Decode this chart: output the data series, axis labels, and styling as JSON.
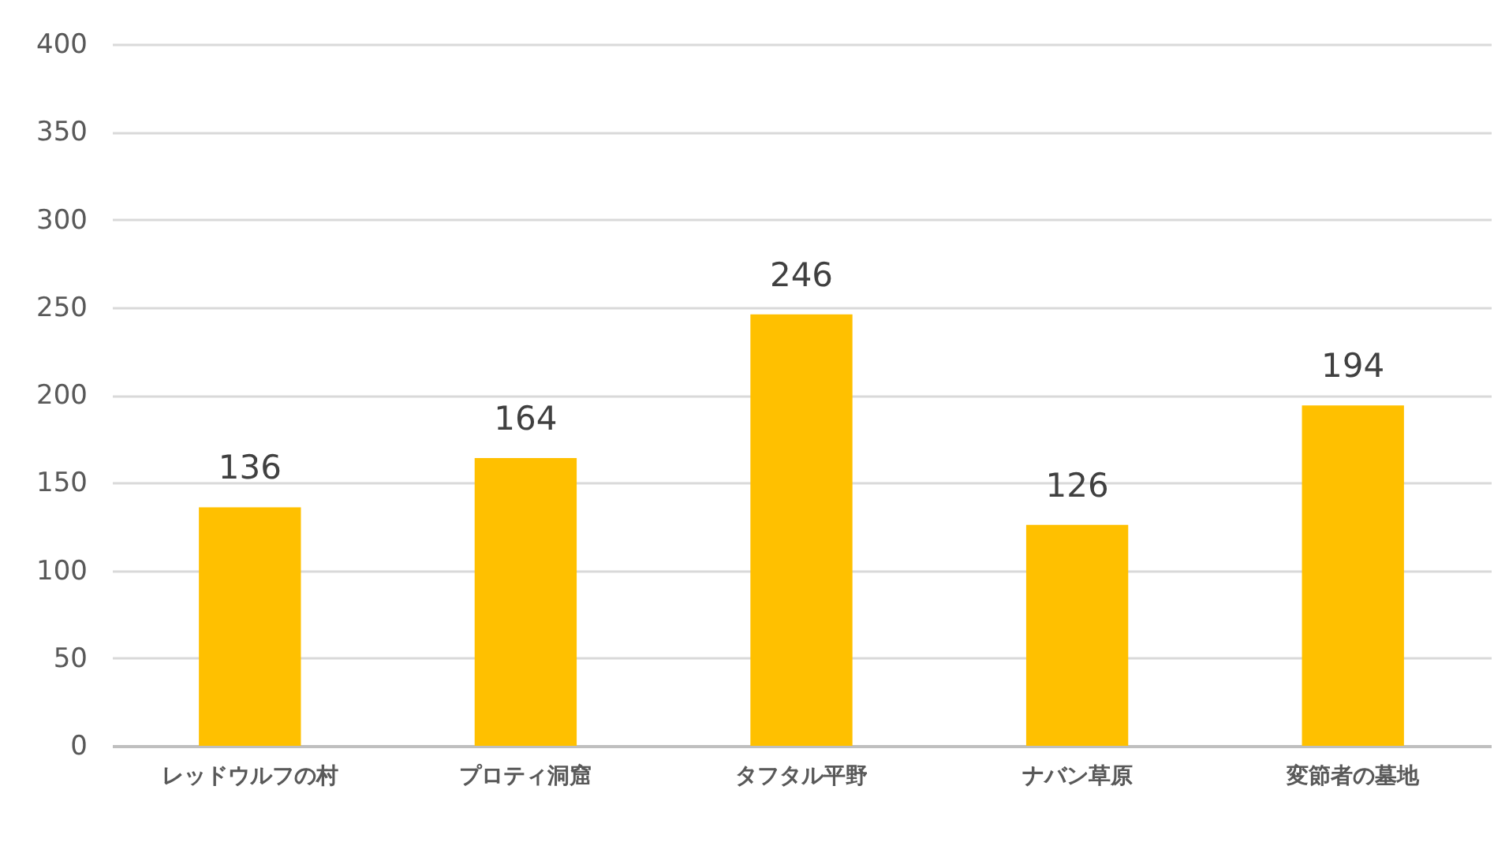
{
  "chart_data": {
    "type": "bar",
    "categories": [
      "レッドウルフの村",
      "プロティ洞窟",
      "タフタル平野",
      "ナバン草原",
      "変節者の墓地"
    ],
    "values": [
      136,
      164,
      246,
      126,
      194
    ],
    "color": "#ffc000",
    "ylim": [
      0,
      400
    ],
    "yticks": [
      0,
      50,
      100,
      150,
      200,
      250,
      300,
      350,
      400
    ],
    "grid": "y",
    "data_labels": true
  }
}
